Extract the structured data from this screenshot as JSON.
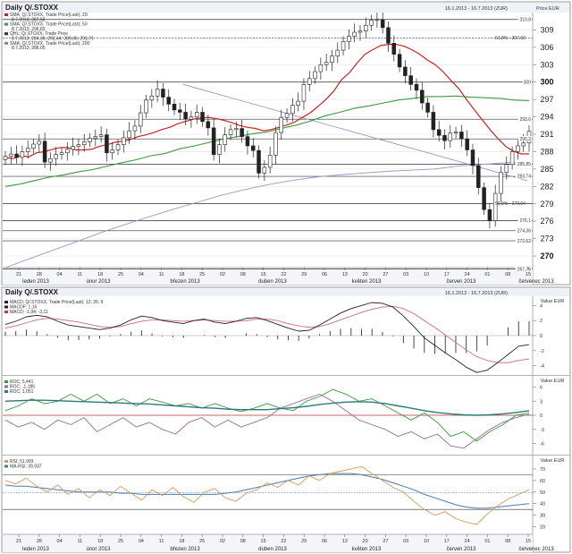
{
  "chart_data": [
    {
      "type": "candlestick",
      "title": "Daily Q/.STOXX",
      "date_range": "16.1.2013 - 16.7.2013 (ZUR)",
      "value_label": "Price EUR",
      "legend": [
        {
          "text": "SMA; Q/.STOXX, Trade Price(Last); 20",
          "color": "#cc2222"
        },
        {
          "text": "8.7.2013; 287,58",
          "color": "#cc2222"
        },
        {
          "text": "SMA; Q/.STOXX, Trade Price(Last); 50",
          "color": "#3a9a3a"
        },
        {
          "text": "8.7.2013; 296,83",
          "color": "#3a9a3a"
        },
        {
          "text": "QHL; Q/.STOXX, Trade Price",
          "color": "#333333"
        },
        {
          "text": "8.7.2013; 284,36; 292,44; 289,36; 291,71",
          "color": "#333333"
        },
        {
          "text": "SMA; Q/.STOXX, Trade Price(Last); 200",
          "color": "#8a80c0"
        },
        {
          "text": "8.7.2013; 286,05",
          "color": "#8a80c0"
        }
      ],
      "ylim": [
        268,
        312
      ],
      "y_ticks": [
        {
          "v": 309,
          "label": "309"
        },
        {
          "v": 306,
          "label": "306"
        },
        {
          "v": 303,
          "label": "303"
        },
        {
          "v": 300,
          "label": "300"
        },
        {
          "v": 297,
          "label": "297"
        },
        {
          "v": 294,
          "label": "294"
        },
        {
          "v": 291,
          "label": "291"
        },
        {
          "v": 288,
          "label": "288"
        },
        {
          "v": 285,
          "label": "285"
        },
        {
          "v": 282,
          "label": "282"
        },
        {
          "v": 279,
          "label": "279"
        },
        {
          "v": 276,
          "label": "276"
        },
        {
          "v": 273,
          "label": "273"
        },
        {
          "v": 270,
          "label": "270"
        }
      ],
      "levels": [
        {
          "v": 310.8,
          "label": "310,8",
          "style": "solid"
        },
        {
          "v": 307.6,
          "label": "61,8% - 307,60",
          "style": "dashed"
        },
        {
          "v": 300.0,
          "label": "300",
          "style": "solid"
        },
        {
          "v": 293.6,
          "label": "293,6",
          "style": "solid"
        },
        {
          "v": 290.2,
          "label": "290,2",
          "style": "solid"
        },
        {
          "v": 285.85,
          "label": "285,85",
          "style": "solid"
        },
        {
          "v": 283.74,
          "label": "283,74",
          "style": "solid"
        },
        {
          "v": 279.04,
          "label": "50,0% - 279,04",
          "style": "solid"
        },
        {
          "v": 276.1,
          "label": "276,1",
          "style": "solid"
        },
        {
          "v": 274.36,
          "label": "274,36",
          "style": "solid"
        },
        {
          "v": 272.62,
          "label": "272,62",
          "style": "solid"
        },
        {
          "v": 267.75,
          "label": "267,75",
          "style": "solid"
        }
      ],
      "day_ticks": [
        "21",
        "28",
        "04",
        "11",
        "18",
        "25",
        "04",
        "11",
        "18",
        "25",
        "02",
        "08",
        "15",
        "22",
        "29",
        "06",
        "13",
        "20",
        "27",
        "03",
        "10",
        "17",
        "24",
        "01",
        "08",
        "15"
      ],
      "months": [
        "leden 2013",
        "únor 2013",
        "březen 2013",
        "duben 2013",
        "květen 2013",
        "červen 2013",
        "červenec 2013"
      ],
      "close": [
        287.2,
        287.6,
        287.0,
        288.0,
        288.6,
        289.3,
        289.8,
        286.2,
        286.8,
        287.5,
        287.8,
        288.4,
        288.9,
        289.2,
        289.7,
        290.3,
        290.6,
        290.9,
        287.8,
        288.3,
        289.2,
        290.4,
        291.6,
        292.4,
        294.7,
        296.9,
        297.6,
        298.8,
        297.4,
        296.2,
        295.2,
        294.8,
        293.6,
        294.0,
        294.8,
        293.2,
        292.1,
        287.5,
        289.2,
        290.9,
        291.8,
        292.0,
        290.6,
        289.0,
        288.2,
        284.3,
        285.3,
        287.4,
        291.3,
        293.9,
        294.6,
        296.0,
        296.7,
        299.6,
        300.6,
        301.8,
        303.0,
        303.4,
        304.5,
        305.5,
        307.0,
        307.9,
        308.6,
        308.8,
        309.8,
        310.7,
        310.8,
        309.4,
        306.7,
        304.8,
        302.6,
        301.1,
        299.6,
        298.6,
        296.4,
        294.8,
        291.8,
        290.8,
        289.9,
        291.2,
        291.4,
        290.2,
        288.3,
        285.6,
        281.8,
        278.0,
        276.1,
        280.8,
        284.4,
        285.8,
        288.0,
        289.0,
        289.5,
        291.5
      ],
      "sma20": [
        287.0,
        286.8,
        287.3,
        287.1,
        287.8,
        288.0,
        288.4,
        288.7,
        288.7,
        288.3,
        288.3,
        288.4,
        288.9,
        289.2,
        289.6,
        289.8,
        290.1,
        290.6,
        290.9,
        291.3,
        291.8,
        292.2,
        292.8,
        293.2,
        293.6,
        293.8,
        293.9,
        293.7,
        293.4,
        293.0,
        292.5,
        292.2,
        292.0,
        291.6,
        291.8,
        292.2,
        292.6,
        293.1,
        293.9,
        294.7,
        295.8,
        297.0,
        298.4,
        300.4,
        301.6,
        303.3,
        304.8,
        305.6,
        306.3,
        306.5,
        306.5,
        306.2,
        305.6,
        304.8,
        303.8,
        303.0,
        301.8,
        300.3,
        298.9,
        297.0,
        295.2,
        293.5,
        291.8,
        290.3,
        288.9,
        288.1,
        287.6,
        287.6
      ],
      "sma50": [
        282.0,
        282.4,
        283.0,
        283.6,
        284.0,
        284.5,
        284.9,
        285.5,
        286.1,
        286.6,
        287.3,
        287.7,
        288.5,
        289.0,
        289.6,
        290.2,
        290.6,
        291.1,
        291.4,
        292.0,
        292.6,
        293.3,
        294.2,
        294.8,
        295.5,
        295.9,
        296.4,
        296.9,
        297.2,
        297.5,
        297.5,
        297.6,
        297.4,
        297.3,
        297.2,
        296.9,
        296.8
      ],
      "sma200": [
        268.0,
        269.5,
        271.0,
        272.5,
        274.0,
        275.4,
        276.7,
        278.0,
        279.2,
        280.4,
        281.4,
        282.3,
        283.0,
        283.6,
        284.0,
        284.3,
        284.6,
        284.8,
        285.0,
        285.5,
        285.8,
        286.1,
        286.3
      ]
    },
    {
      "type": "line",
      "title": "Daily Q/.STOXX",
      "date_range": "16.1.2013 - 16.7.2013 (ZUR)",
      "value_label": "Value EUR",
      "legend": [
        {
          "text": "MACD; Q/.STOXX, Trade Price(Last); 12; 26; 9",
          "color": "#222222"
        },
        {
          "text": "MACDF; 1,16",
          "color": "#222222"
        },
        {
          "text": "MACD; -1,94; -3,11",
          "color": "#cc3355"
        }
      ],
      "ylim": [
        -5,
        5
      ],
      "y_ticks": [
        {
          "v": 4,
          "label": "4"
        },
        {
          "v": 2,
          "label": "2"
        },
        {
          "v": 0,
          "label": "0"
        },
        {
          "v": -2,
          "label": "-2"
        },
        {
          "v": -4,
          "label": "-4"
        }
      ],
      "macd": [
        1.5,
        1.9,
        2.5,
        2.7,
        2.5,
        1.9,
        1.4,
        1.2,
        1.0,
        0.8,
        1.0,
        1.4,
        2.1,
        2.6,
        2.4,
        2.0,
        1.8,
        1.6,
        2.0,
        2.2,
        1.8,
        1.6,
        1.9,
        2.3,
        2.4,
        2.0,
        1.5,
        1.0,
        0.6,
        0.7,
        1.4,
        2.2,
        3.0,
        3.6,
        4.0,
        4.4,
        4.3,
        3.8,
        2.6,
        1.2,
        -0.3,
        -1.3,
        -2.3,
        -3.2,
        -4.2,
        -4.9,
        -4.6,
        -3.6,
        -2.5,
        -1.4,
        -1.2
      ],
      "signal": [
        1.0,
        1.3,
        1.7,
        2.1,
        2.3,
        2.2,
        2.0,
        1.8,
        1.5,
        1.2,
        1.1,
        1.2,
        1.6,
        1.9,
        2.1,
        2.1,
        2.0,
        1.9,
        2.0,
        2.1,
        2.0,
        1.9,
        1.9,
        2.0,
        2.2,
        2.2,
        2.0,
        1.6,
        1.3,
        1.1,
        1.2,
        1.6,
        2.1,
        2.6,
        3.1,
        3.5,
        3.8,
        3.9,
        3.6,
        2.9,
        2.0,
        1.1,
        0.1,
        -0.9,
        -1.9,
        -2.8,
        -3.3,
        -3.6,
        -3.6,
        -3.3,
        -3.1
      ],
      "histogram": [
        0.5,
        0.6,
        0.8,
        0.6,
        0.2,
        -0.3,
        -0.6,
        -0.6,
        -0.5,
        -0.4,
        -0.1,
        0.2,
        0.5,
        0.7,
        0.3,
        -0.1,
        -0.2,
        -0.3,
        0.0,
        0.1,
        -0.2,
        -0.3,
        0.0,
        0.3,
        0.2,
        -0.2,
        -0.5,
        -0.6,
        -0.7,
        -0.4,
        0.2,
        0.6,
        0.9,
        1.0,
        0.9,
        0.9,
        0.5,
        -0.1,
        -1.0,
        -1.7,
        -2.3,
        -2.4,
        -2.4,
        -2.3,
        -2.3,
        -2.1,
        -1.3,
        0.0,
        1.1,
        1.9,
        1.9
      ]
    },
    {
      "type": "line",
      "value_label": "Value EUR",
      "legend": [
        {
          "text": "ROC; 5,441",
          "color": "#3a9a3a"
        },
        {
          "text": "ROC; -1,185",
          "color": "#9a6a9a"
        },
        {
          "text": "ROC; 1,051",
          "color": "#2a7a7a"
        }
      ],
      "ylim": [
        -8,
        8
      ],
      "y_ticks": [
        {
          "v": 6,
          "label": "6"
        },
        {
          "v": 3,
          "label": "3"
        },
        {
          "v": 0,
          "label": "0"
        },
        {
          "v": -3,
          "label": "-3"
        },
        {
          "v": -6,
          "label": "-6"
        }
      ],
      "roc_green": [
        1.0,
        2.0,
        3.5,
        2.5,
        3.0,
        4.5,
        3.0,
        4.5,
        2.5,
        3.5,
        2.0,
        3.5,
        2.8,
        2.0,
        2.5,
        1.5,
        2.5,
        1.5,
        0.8,
        1.5,
        2.5,
        1.5,
        1.0,
        3.0,
        4.0,
        5.5,
        4.5,
        3.0,
        3.5,
        2.0,
        0.5,
        -1.0,
        0.5,
        -1.5,
        -4.5,
        -3.5,
        -5.5,
        -3.5,
        -2.0,
        0.0,
        0.5
      ],
      "roc_purple": [
        -1.0,
        -2.5,
        -1.5,
        -3.0,
        -1.0,
        -2.0,
        -0.5,
        -3.5,
        -2.0,
        -0.5,
        -2.5,
        -1.5,
        -3.0,
        -4.0,
        -1.5,
        -0.5,
        -2.5,
        -1.0,
        -2.5,
        -1.5,
        -0.5,
        1.5,
        2.5,
        3.5,
        4.5,
        3.0,
        1.0,
        -1.0,
        -2.0,
        -3.0,
        -4.5,
        -3.5,
        -5.0,
        -4.0,
        -6.5,
        -7.0,
        -5.0,
        -3.0,
        -1.5,
        -0.5,
        0.2
      ],
      "roc_teal": [
        3.0,
        3.1,
        3.2,
        3.2,
        3.1,
        3.0,
        2.9,
        2.8,
        2.7,
        2.6,
        2.5,
        2.4,
        2.2,
        2.0,
        1.8,
        1.6,
        1.5,
        1.3,
        1.2,
        1.2,
        1.2,
        1.4,
        1.6,
        1.9,
        2.3,
        2.6,
        2.8,
        2.9,
        2.8,
        2.5,
        2.0,
        1.5,
        1.0,
        0.6,
        0.3,
        0.1,
        0.0,
        0.1,
        0.3,
        0.6,
        1.0
      ]
    },
    {
      "type": "line",
      "value_label": "Value EUR",
      "legend": [
        {
          "text": "RSI; 51,993",
          "color": "#d89a5a"
        },
        {
          "text": "MA-RSI; 39,937",
          "color": "#4a7ab0"
        }
      ],
      "ylim": [
        15,
        80
      ],
      "y_ticks": [
        {
          "v": 70,
          "label": "70"
        },
        {
          "v": 60,
          "label": "60"
        },
        {
          "v": 50,
          "label": "50"
        },
        {
          "v": 40,
          "label": "40"
        },
        {
          "v": 30,
          "label": "30"
        },
        {
          "v": 20,
          "label": "20"
        }
      ],
      "levels": [
        {
          "v": 65,
          "style": "solid"
        },
        {
          "v": 49.5,
          "style": "dotted"
        },
        {
          "v": 35,
          "style": "solid"
        }
      ],
      "rsi": [
        60,
        57,
        62,
        55,
        50,
        56,
        48,
        53,
        45,
        52,
        47,
        55,
        49,
        43,
        52,
        47,
        54,
        46,
        41,
        50,
        53,
        45,
        42,
        49,
        52,
        58,
        54,
        60,
        56,
        64,
        60,
        66,
        68,
        70,
        72,
        66,
        60,
        54,
        50,
        42,
        35,
        30,
        33,
        27,
        24,
        22,
        31,
        38,
        44,
        48,
        52
      ],
      "ma_rsi": [
        56,
        55,
        55,
        54,
        53,
        52,
        51,
        50,
        50,
        50,
        50,
        49,
        49,
        48,
        48,
        48,
        48,
        48,
        48,
        48,
        48,
        49,
        50,
        52,
        54,
        56,
        58,
        60,
        62,
        64,
        65,
        66,
        66,
        66,
        65,
        63,
        61,
        58,
        55,
        52,
        48,
        45,
        42,
        39,
        37,
        36,
        36,
        37,
        38,
        39,
        40
      ]
    }
  ]
}
